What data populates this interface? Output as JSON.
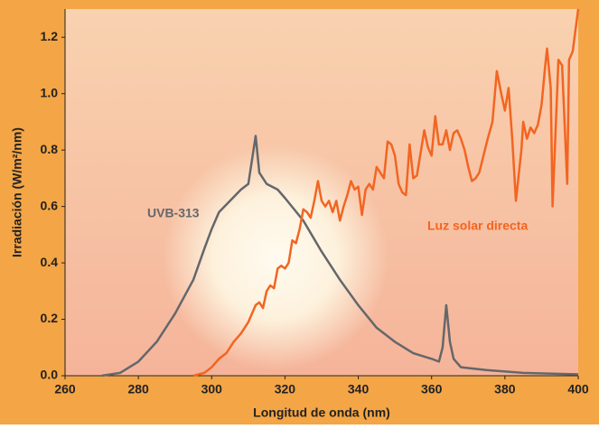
{
  "chart_data": {
    "type": "line",
    "x_label": "Longitud de onda (nm)",
    "y_label": "Irradiación (W/m²/nm)",
    "annotations": [
      "UVB-313",
      "Luz solar directa"
    ],
    "xlim": [
      260,
      400
    ],
    "xticks": [
      260,
      280,
      300,
      320,
      340,
      360,
      380,
      400
    ],
    "ylim": [
      0,
      1.3
    ],
    "yticks": [
      {
        "value": 0,
        "label": "0.0"
      },
      0.2,
      0.4,
      0.6,
      0.8,
      {
        "value": 1,
        "label": "1.0"
      },
      1.2
    ],
    "series": [
      {
        "name": "UVB-313",
        "color": "#64676b",
        "x": [
          270,
          275,
          280,
          285,
          290,
          295,
          298,
          300,
          302,
          305,
          308,
          310,
          312,
          313,
          315,
          318,
          320,
          325,
          330,
          335,
          340,
          345,
          350,
          355,
          360,
          362,
          363,
          364,
          365,
          366,
          368,
          375,
          385,
          400
        ],
        "values": [
          0,
          0.01,
          0.05,
          0.12,
          0.22,
          0.34,
          0.45,
          0.52,
          0.58,
          0.62,
          0.66,
          0.68,
          0.85,
          0.72,
          0.68,
          0.66,
          0.63,
          0.55,
          0.44,
          0.34,
          0.25,
          0.17,
          0.12,
          0.08,
          0.06,
          0.05,
          0.1,
          0.25,
          0.12,
          0.06,
          0.03,
          0.02,
          0.01,
          0.005
        ]
      },
      {
        "name": "Luz solar directa",
        "color": "#f26522",
        "x": [
          295,
          298,
          300,
          302,
          304,
          306,
          308,
          310,
          311,
          312,
          313,
          314,
          315,
          316,
          317,
          318,
          319,
          320,
          321,
          322,
          323,
          324,
          325,
          326,
          327,
          328,
          329,
          330,
          331,
          332,
          333,
          334,
          335,
          336,
          337,
          338,
          339,
          340,
          341,
          342,
          343,
          344,
          345,
          346,
          347,
          348,
          349,
          350,
          351,
          352,
          353,
          354,
          355,
          356,
          357,
          358,
          359,
          360,
          361,
          362,
          363,
          364,
          365,
          366,
          367,
          368,
          369,
          370,
          371,
          372,
          373,
          375.3,
          376.6,
          377.8,
          379,
          380,
          381,
          382,
          383,
          384.5,
          385,
          386,
          387,
          388,
          389,
          390,
          391,
          391.5,
          392.5,
          393,
          394.6,
          395.6,
          397,
          397.5,
          398.5,
          400
        ],
        "values": [
          0,
          0.01,
          0.03,
          0.06,
          0.08,
          0.12,
          0.15,
          0.19,
          0.22,
          0.25,
          0.26,
          0.24,
          0.3,
          0.32,
          0.31,
          0.38,
          0.39,
          0.38,
          0.4,
          0.48,
          0.47,
          0.52,
          0.59,
          0.58,
          0.56,
          0.62,
          0.69,
          0.62,
          0.6,
          0.62,
          0.58,
          0.62,
          0.55,
          0.6,
          0.64,
          0.69,
          0.66,
          0.67,
          0.57,
          0.66,
          0.68,
          0.66,
          0.74,
          0.72,
          0.7,
          0.83,
          0.82,
          0.78,
          0.68,
          0.65,
          0.64,
          0.82,
          0.7,
          0.71,
          0.79,
          0.87,
          0.81,
          0.78,
          0.92,
          0.82,
          0.82,
          0.87,
          0.8,
          0.86,
          0.87,
          0.84,
          0.8,
          0.74,
          0.69,
          0.7,
          0.72,
          0.84,
          0.9,
          1.08,
          1.0,
          0.94,
          1.02,
          0.84,
          0.62,
          0.8,
          0.9,
          0.84,
          0.88,
          0.86,
          0.89,
          0.96,
          1.1,
          1.16,
          1.02,
          0.6,
          1.12,
          1.1,
          0.68,
          1.12,
          1.15,
          1.3
        ]
      }
    ]
  }
}
